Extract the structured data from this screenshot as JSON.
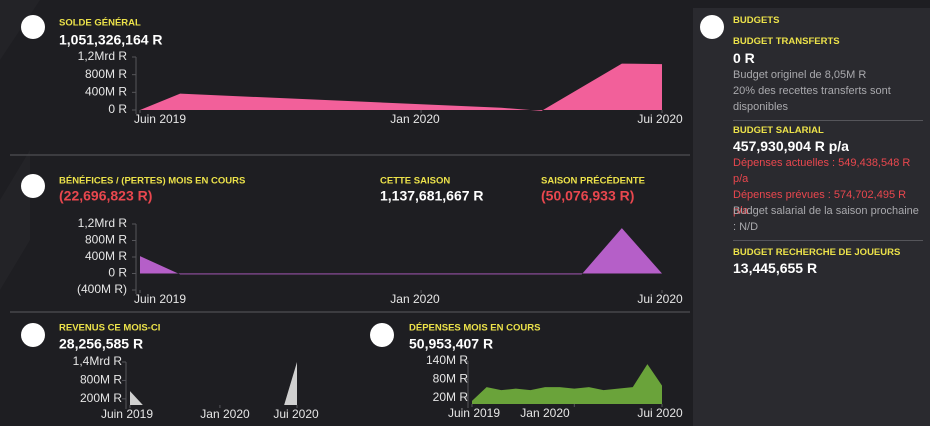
{
  "balance": {
    "label": "SOLDE GÉNÉRAL",
    "value": "1,051,326,164 R",
    "chart": {
      "type": "area",
      "color": "#f2609a",
      "x": [
        0,
        1,
        9,
        10,
        12,
        13
      ],
      "values": [
        0,
        370000000,
        50000000,
        -20000000,
        1050000000,
        1040000000
      ],
      "xlim": [
        0,
        13
      ],
      "ylim": [
        0,
        1200000000
      ],
      "xticks": [
        {
          "value": 0,
          "label": "Juin 2019"
        },
        {
          "value": 7,
          "label": "Jan 2020"
        },
        {
          "value": 13,
          "label": "Jui 2020"
        }
      ],
      "yticks": [
        {
          "value": 0,
          "label": "0 R"
        },
        {
          "value": 400000000,
          "label": "400M R"
        },
        {
          "value": 800000000,
          "label": "800M R"
        },
        {
          "value": 1200000000,
          "label": "1,2Mrd R"
        }
      ]
    }
  },
  "profit": {
    "label": "BÉNÉFICES / (PERTES) MOIS EN COURS",
    "value": "(22,696,823 R)",
    "season": {
      "label": "CETTE SAISON",
      "value": "1,137,681,667 R"
    },
    "previous": {
      "label": "SAISON PRÉCÉDENTE",
      "value": "(50,076,933 R)"
    },
    "chart": {
      "type": "area",
      "color": "#b55fc8",
      "x": [
        0,
        1,
        11,
        12,
        13
      ],
      "values": [
        420000000,
        -20000000,
        -20000000,
        1100000000,
        0
      ],
      "xlim": [
        0,
        13
      ],
      "ylim": [
        -400000000,
        1200000000
      ],
      "xticks": [
        {
          "value": 0,
          "label": "Juin 2019"
        },
        {
          "value": 7,
          "label": "Jan 2020"
        },
        {
          "value": 13,
          "label": "Jui 2020"
        }
      ],
      "yticks": [
        {
          "value": -400000000,
          "label": "(400M R)"
        },
        {
          "value": 0,
          "label": "0 R"
        },
        {
          "value": 400000000,
          "label": "400M R"
        },
        {
          "value": 800000000,
          "label": "800M R"
        },
        {
          "value": 1200000000,
          "label": "1,2Mrd R"
        }
      ]
    }
  },
  "income": {
    "label": "REVENUS CE MOIS-CI",
    "value": "28,256,585 R",
    "chart": {
      "type": "area",
      "color": "#d0d0d0",
      "x": [
        0,
        1,
        12,
        13
      ],
      "values": [
        450000000,
        0,
        0,
        1400000000
      ],
      "xlim": [
        0,
        13
      ],
      "ylim": [
        0,
        1400000000
      ],
      "xticks": [
        {
          "value": 0,
          "label": "Juin 2019"
        },
        {
          "value": 7,
          "label": "Jan 2020"
        },
        {
          "value": 13,
          "label": "Jui 2020"
        }
      ],
      "yticks": [
        {
          "value": 200000000,
          "label": "200M R"
        },
        {
          "value": 800000000,
          "label": "800M R"
        },
        {
          "value": 1400000000,
          "label": "1,4Mrd R"
        }
      ]
    }
  },
  "expenses": {
    "label": "DÉPENSES MOIS EN COURS",
    "value": "50,953,407 R",
    "chart": {
      "type": "area",
      "color": "#6aa33a",
      "x": [
        0,
        1,
        2,
        3,
        4,
        5,
        6,
        7,
        8,
        9,
        10,
        11,
        12,
        13
      ],
      "values": [
        10000000,
        55000000,
        45000000,
        50000000,
        45000000,
        55000000,
        55000000,
        50000000,
        55000000,
        45000000,
        50000000,
        55000000,
        130000000,
        60000000
      ],
      "xlim": [
        0,
        13
      ],
      "ylim": [
        0,
        140000000
      ],
      "xticks": [
        {
          "value": 0,
          "label": "Juin 2019"
        },
        {
          "value": 7,
          "label": "Jan 2020"
        },
        {
          "value": 13,
          "label": "Jui 2020"
        }
      ],
      "yticks": [
        {
          "value": 20000000,
          "label": "20M R"
        },
        {
          "value": 80000000,
          "label": "80M R"
        },
        {
          "value": 140000000,
          "label": "140M R"
        }
      ]
    }
  },
  "budgets": {
    "title": "BUDGETS",
    "transfer": {
      "label": "BUDGET TRANSFERTS",
      "value": "0 R",
      "notes": [
        "Budget originel de 8,05M R",
        "20% des recettes transferts sont disponibles"
      ]
    },
    "wage": {
      "label": "BUDGET SALARIAL",
      "value": "457,930,904 R p/a",
      "current": "Dépenses actuelles : 549,438,548 R p/a",
      "projected": "Dépenses prévues : 574,702,495 R p/a",
      "note": "Budget salarial de la saison prochaine : N/D"
    },
    "scouting": {
      "label": "BUDGET RECHERCHE DE JOUEURS",
      "value": "13,445,655 R"
    }
  }
}
